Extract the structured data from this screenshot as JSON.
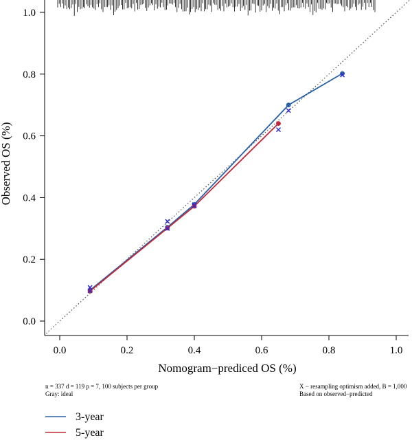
{
  "chart_data": {
    "type": "line",
    "xlabel": "Nomogram−prediced OS (%)",
    "ylabel": "Observed OS (%)",
    "xlim": [
      -0.04,
      1.04
    ],
    "ylim": [
      -0.03,
      1.04
    ],
    "x_ticks": [
      "0.0",
      "0.2",
      "0.4",
      "0.6",
      "0.8",
      "1.0"
    ],
    "y_ticks": [
      "0.0",
      "0.2",
      "0.4",
      "0.6",
      "0.8",
      "1.0"
    ],
    "x_tick_values": [
      0,
      0.2,
      0.4,
      0.6,
      0.8,
      1.0
    ],
    "y_tick_values": [
      0,
      0.2,
      0.4,
      0.6,
      0.8,
      1.0
    ],
    "ideal_line": true,
    "series": [
      {
        "name": "3-year",
        "color": "#2a62a8",
        "line": [
          [
            0.09,
            0.1
          ],
          [
            0.32,
            0.304
          ],
          [
            0.4,
            0.378
          ],
          [
            0.68,
            0.7
          ],
          [
            0.84,
            0.802
          ]
        ],
        "points": [
          [
            0.09,
            0.1
          ],
          [
            0.32,
            0.304
          ],
          [
            0.4,
            0.378
          ],
          [
            0.68,
            0.7
          ],
          [
            0.84,
            0.802
          ]
        ],
        "corrected": [
          [
            0.09,
            0.109
          ],
          [
            0.32,
            0.323
          ],
          [
            0.4,
            0.377
          ],
          [
            0.68,
            0.682
          ],
          [
            0.84,
            0.797
          ]
        ]
      },
      {
        "name": "5-year",
        "color": "#c0293a",
        "line": [
          [
            0.09,
            0.097
          ],
          [
            0.32,
            0.301
          ],
          [
            0.4,
            0.372
          ],
          [
            0.65,
            0.64
          ]
        ],
        "points": [
          [
            0.09,
            0.097
          ],
          [
            0.32,
            0.301
          ],
          [
            0.4,
            0.372
          ],
          [
            0.65,
            0.64
          ]
        ],
        "corrected": [
          [
            0.09,
            0.098
          ],
          [
            0.32,
            0.3
          ],
          [
            0.4,
            0.373
          ],
          [
            0.65,
            0.62
          ]
        ]
      }
    ],
    "corrected_marker_color": "#2b2bd0",
    "legend_placement": "bottom-left"
  },
  "footnotes": {
    "left_line1": "n = 337 d = 119 p = 7, 100 subjects per group",
    "left_line2": "Gray: ideal",
    "right_line1": "X − resampling optimism added, B = 1,000",
    "right_line2": "Based on observed−predicted"
  },
  "legend": [
    {
      "label": "3-year",
      "color": "#2a62a8"
    },
    {
      "label": "5-year",
      "color": "#c0293a"
    }
  ]
}
